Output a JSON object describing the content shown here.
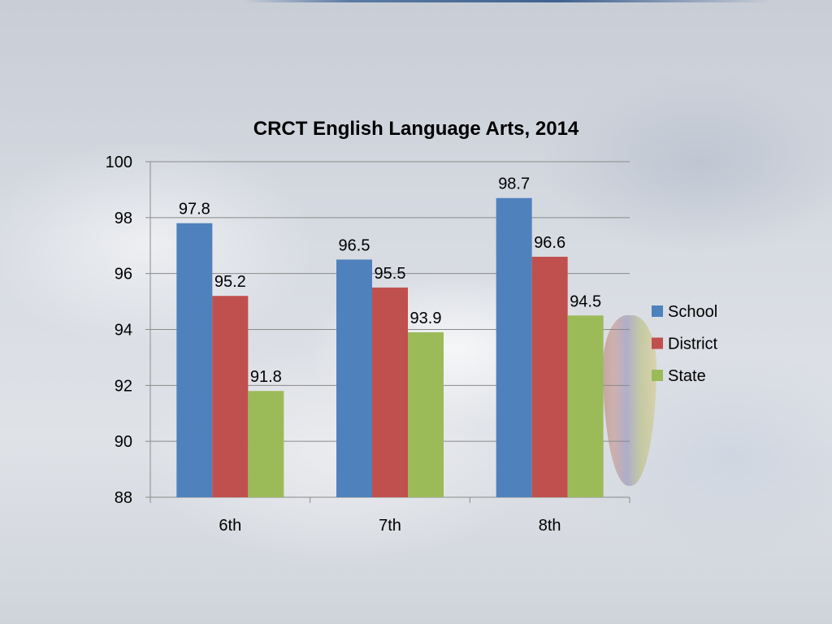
{
  "chart_data": {
    "type": "bar",
    "title": "CRCT English Language Arts, 2014",
    "xlabel": "",
    "ylabel": "",
    "categories": [
      "6th",
      "7th",
      "8th"
    ],
    "series": [
      {
        "name": "School",
        "values": [
          97.8,
          96.5,
          98.7
        ],
        "color": "#4f81bd"
      },
      {
        "name": "District",
        "values": [
          95.2,
          95.5,
          96.6
        ],
        "color": "#c0504d"
      },
      {
        "name": "State",
        "values": [
          91.8,
          93.9,
          94.5
        ],
        "color": "#9bbb59"
      }
    ],
    "ylim": [
      88,
      100
    ],
    "yticks": [
      88,
      90,
      92,
      94,
      96,
      98,
      100
    ],
    "grid": true,
    "legend_position": "right",
    "data_labels": true
  }
}
